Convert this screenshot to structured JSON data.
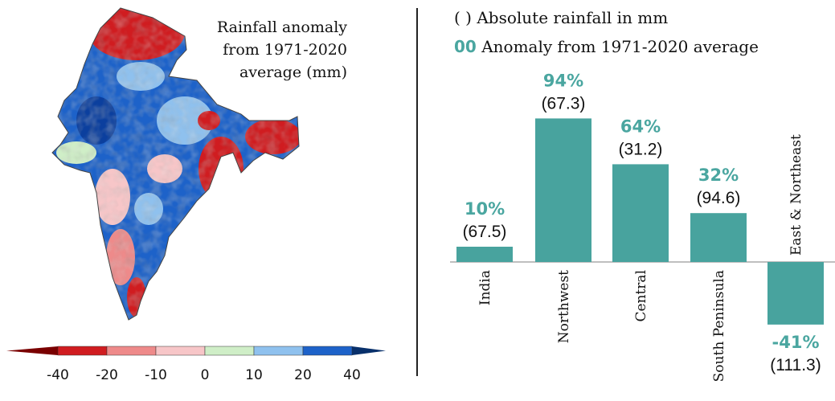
{
  "map": {
    "title_lines": [
      "Rainfall anomaly",
      "from 1971-2020",
      "average  (mm)"
    ],
    "colorbar": {
      "ticks": [
        "-40",
        "-20",
        "-10",
        "0",
        "10",
        "20",
        "40"
      ],
      "colors": [
        "#d01c20",
        "#ee8a8a",
        "#f7c6c8",
        "#cfeec7",
        "#8fc1ee",
        "#1d62c9"
      ]
    }
  },
  "legend": {
    "absolute_marker": "( )",
    "absolute_text": "Absolute rainfall in mm",
    "anomaly_marker": "00",
    "anomaly_text": "Anomaly from 1971-2020  average"
  },
  "chart_data": {
    "type": "bar",
    "categories": [
      "India",
      "Northwest",
      "Central",
      "South Peninsula",
      "East & Northeast"
    ],
    "anomaly_percent": [
      10,
      94,
      64,
      32,
      -41
    ],
    "anomaly_labels": [
      "10%",
      "94%",
      "64%",
      "32%",
      "-41%"
    ],
    "absolute_rainfall_mm": [
      67.5,
      67.3,
      31.2,
      94.6,
      111.3
    ],
    "absolute_labels": [
      "(67.5)",
      "(67.3)",
      "(31.2)",
      "(94.6)",
      "(111.3)"
    ],
    "bar_color": "#48a39e",
    "label_color": "#4aa6a0"
  }
}
